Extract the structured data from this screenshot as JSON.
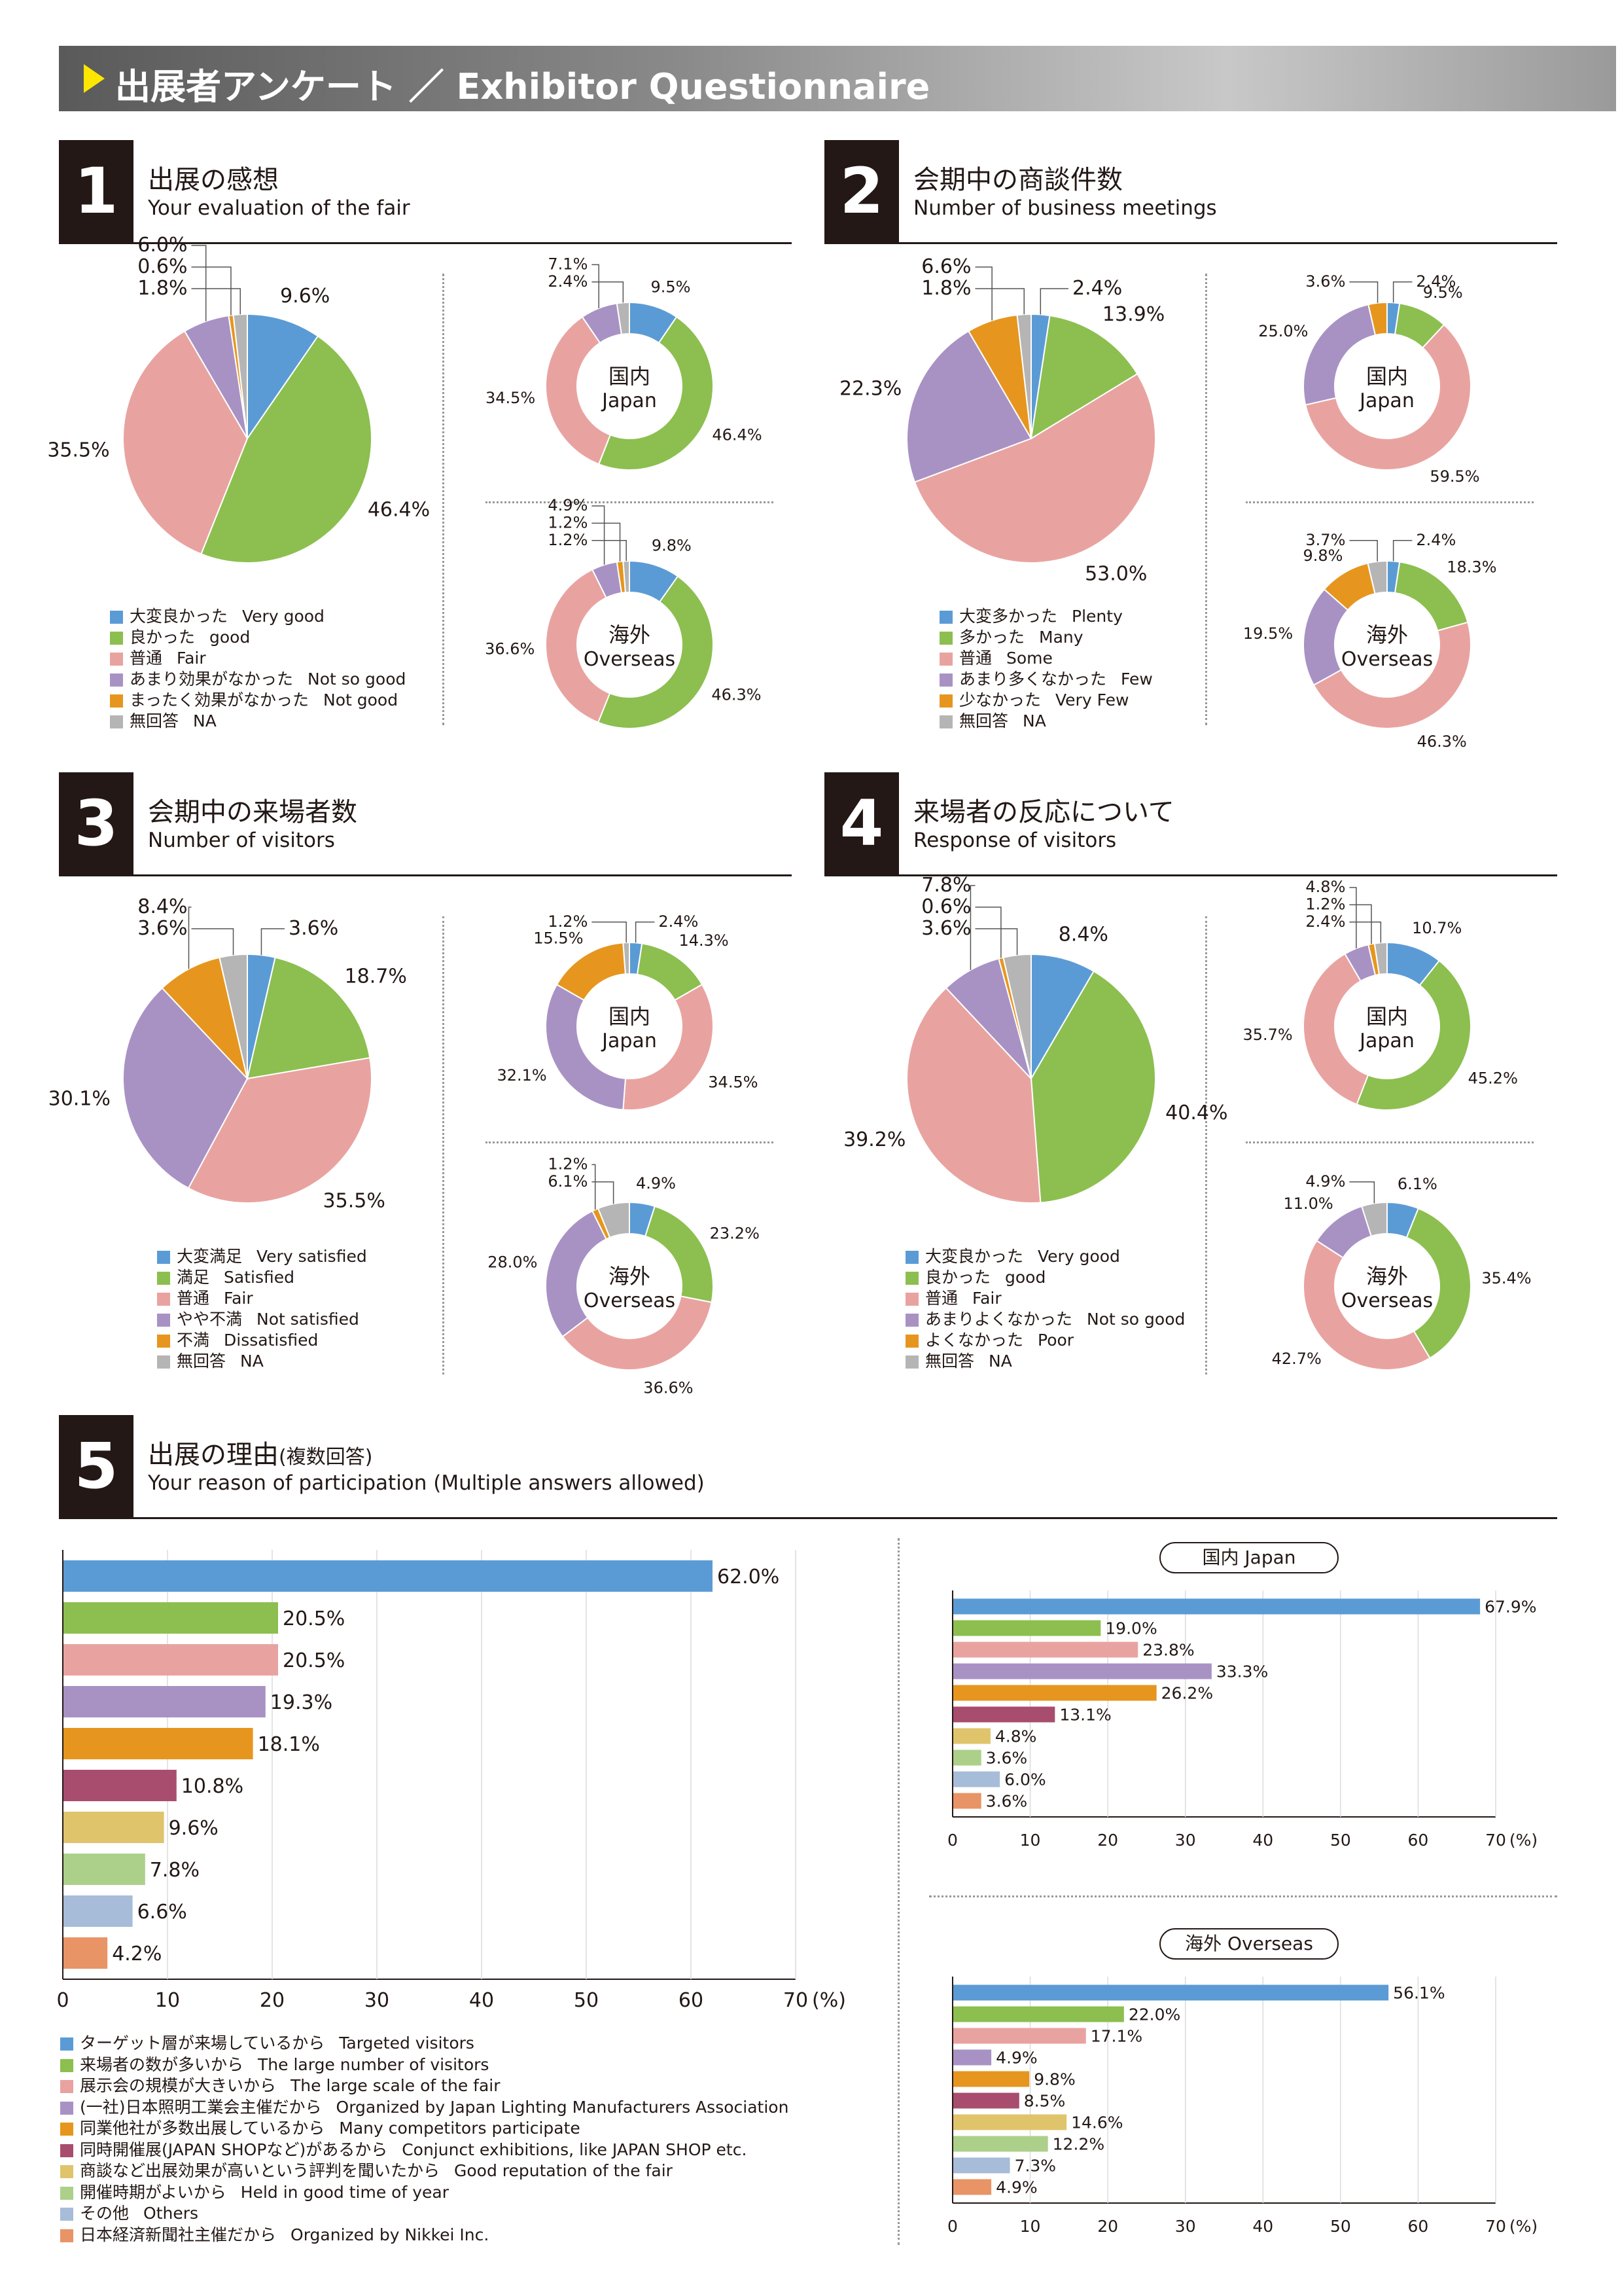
{
  "banner": {
    "title": "出展者アンケート ／ Exhibitor Questionnaire"
  },
  "colors": {
    "blue": "#5b9bd5",
    "green": "#8cbf4f",
    "pink": "#e8a3a0",
    "purple": "#a892c4",
    "orange": "#e6961e",
    "gray": "#b5b5b5",
    "crimson": "#a84d6e",
    "gold": "#e0c46c",
    "lightgreen": "#acd08a",
    "lightblue": "#a6bcd9",
    "salmon": "#e89466"
  },
  "sections": [
    {
      "num": "1",
      "title_jp": "出展の感想",
      "title_en": "Your evaluation of the fair"
    },
    {
      "num": "2",
      "title_jp": "会期中の商談件数",
      "title_en": "Number of business meetings"
    },
    {
      "num": "3",
      "title_jp": "会期中の来場者数",
      "title_en": "Number of visitors"
    },
    {
      "num": "4",
      "title_jp": "来場者の反応について",
      "title_en": "Response of visitors"
    },
    {
      "num": "5",
      "title_jp": "出展の理由",
      "title_jp_note": "(複数回答)",
      "title_en": "Your reason of participation (Multiple answers allowed)"
    }
  ],
  "donut_labels": {
    "japan_jp": "国内",
    "japan_en": "Japan",
    "overseas_jp": "海外",
    "overseas_en": "Overseas"
  },
  "chart_data": [
    {
      "id": "q1",
      "type": "pie",
      "section": "1",
      "categories": [
        {
          "jp": "大変良かった",
          "en": "Very good",
          "color": "blue"
        },
        {
          "jp": "良かった",
          "en": "good",
          "color": "green"
        },
        {
          "jp": "普通",
          "en": "Fair",
          "color": "pink"
        },
        {
          "jp": "あまり効果がなかった",
          "en": "Not so good",
          "color": "purple"
        },
        {
          "jp": "まったく効果がなかった",
          "en": "Not good",
          "color": "orange"
        },
        {
          "jp": "無回答",
          "en": "NA",
          "color": "gray"
        }
      ],
      "total": [
        9.6,
        46.4,
        35.5,
        6.0,
        0.6,
        1.8
      ],
      "japan": [
        9.5,
        46.4,
        34.5,
        7.1,
        0,
        2.4
      ],
      "overseas": [
        9.8,
        46.3,
        36.6,
        4.9,
        1.2,
        1.2
      ]
    },
    {
      "id": "q2",
      "type": "pie",
      "section": "2",
      "categories": [
        {
          "jp": "大変多かった",
          "en": "Plenty",
          "color": "blue"
        },
        {
          "jp": "多かった",
          "en": "Many",
          "color": "green"
        },
        {
          "jp": "普通",
          "en": "Some",
          "color": "pink"
        },
        {
          "jp": "あまり多くなかった",
          "en": "Few",
          "color": "purple"
        },
        {
          "jp": "少なかった",
          "en": "Very Few",
          "color": "orange"
        },
        {
          "jp": "無回答",
          "en": "NA",
          "color": "gray"
        }
      ],
      "total": [
        2.4,
        13.9,
        53.0,
        22.3,
        6.6,
        1.8
      ],
      "japan": [
        2.4,
        9.5,
        59.5,
        25.0,
        3.6,
        0
      ],
      "overseas": [
        2.4,
        18.3,
        46.3,
        19.5,
        9.8,
        3.7
      ]
    },
    {
      "id": "q3",
      "type": "pie",
      "section": "3",
      "categories": [
        {
          "jp": "大変満足",
          "en": "Very satisfied",
          "color": "blue"
        },
        {
          "jp": "満足",
          "en": "Satisfied",
          "color": "green"
        },
        {
          "jp": "普通",
          "en": "Fair",
          "color": "pink"
        },
        {
          "jp": "やや不満",
          "en": "Not satisfied",
          "color": "purple"
        },
        {
          "jp": "不満",
          "en": "Dissatisfied",
          "color": "orange"
        },
        {
          "jp": "無回答",
          "en": "NA",
          "color": "gray"
        }
      ],
      "total": [
        3.6,
        18.7,
        35.5,
        30.1,
        8.4,
        3.6
      ],
      "japan": [
        2.4,
        14.3,
        34.5,
        32.1,
        15.5,
        1.2
      ],
      "overseas": [
        4.9,
        23.2,
        36.6,
        28.0,
        1.2,
        6.1
      ]
    },
    {
      "id": "q4",
      "type": "pie",
      "section": "4",
      "categories": [
        {
          "jp": "大変良かった",
          "en": "Very good",
          "color": "blue"
        },
        {
          "jp": "良かった",
          "en": "good",
          "color": "green"
        },
        {
          "jp": "普通",
          "en": "Fair",
          "color": "pink"
        },
        {
          "jp": "あまりよくなかった",
          "en": "Not so good",
          "color": "purple"
        },
        {
          "jp": "よくなかった",
          "en": "Poor",
          "color": "orange"
        },
        {
          "jp": "無回答",
          "en": "NA",
          "color": "gray"
        }
      ],
      "total": [
        8.4,
        40.4,
        39.2,
        7.8,
        0.6,
        3.6
      ],
      "japan": [
        10.7,
        45.2,
        35.7,
        4.8,
        1.2,
        2.4
      ],
      "overseas": [
        6.1,
        35.4,
        42.7,
        11.0,
        0,
        4.9
      ]
    },
    {
      "id": "q5",
      "type": "bar",
      "section": "5",
      "unit": "(%)",
      "xlim": [
        0,
        70
      ],
      "ticks": [
        0,
        10,
        20,
        30,
        40,
        50,
        60,
        70
      ],
      "categories": [
        {
          "jp": "ターゲット層が来場しているから",
          "en": "Targeted visitors",
          "color": "blue"
        },
        {
          "jp": "来場者の数が多いから",
          "en": "The large number of visitors",
          "color": "green"
        },
        {
          "jp": "展示会の規模が大きいから",
          "en": "The large scale of the fair",
          "color": "pink"
        },
        {
          "jp": "(一社)日本照明工業会主催だから",
          "en": "Organized by Japan Lighting Manufacturers Association",
          "color": "purple"
        },
        {
          "jp": "同業他社が多数出展しているから",
          "en": "Many competitors participate",
          "color": "orange"
        },
        {
          "jp": "同時開催展(JAPAN SHOPなど)があるから",
          "en": "Conjunct exhibitions, like JAPAN SHOP etc.",
          "color": "crimson"
        },
        {
          "jp": "商談など出展効果が高いという評判を聞いたから",
          "en": "Good reputation of the fair",
          "color": "gold"
        },
        {
          "jp": "開催時期がよいから",
          "en": "Held in good time of year",
          "color": "lightgreen"
        },
        {
          "jp": "その他",
          "en": "Others",
          "color": "lightblue"
        },
        {
          "jp": "日本経済新聞社主催だから",
          "en": "Organized by Nikkei Inc.",
          "color": "salmon"
        }
      ],
      "series": [
        {
          "name": "",
          "values": [
            62.0,
            20.5,
            20.5,
            19.3,
            18.1,
            10.8,
            9.6,
            7.8,
            6.6,
            4.2
          ]
        },
        {
          "name": "国内 Japan",
          "values": [
            67.9,
            19.0,
            23.8,
            33.3,
            26.2,
            13.1,
            4.8,
            3.6,
            6.0,
            3.6
          ]
        },
        {
          "name": "海外 Overseas",
          "values": [
            56.1,
            22.0,
            17.1,
            4.9,
            9.8,
            8.5,
            14.6,
            12.2,
            7.3,
            4.9
          ]
        }
      ]
    }
  ]
}
